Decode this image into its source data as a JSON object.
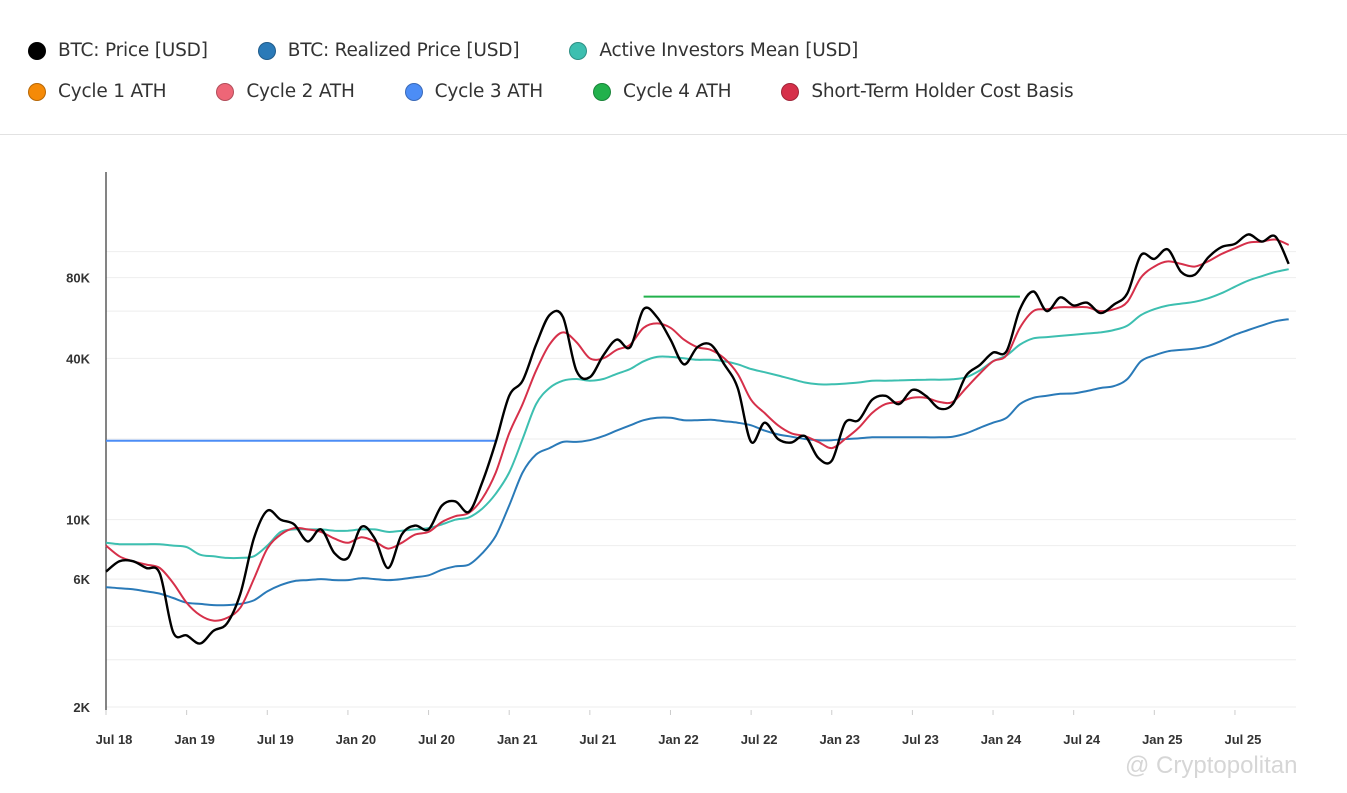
{
  "legend": [
    [
      {
        "label": "BTC: Price [USD]",
        "color": "#000000"
      },
      {
        "label": "BTC: Realized Price [USD]",
        "color": "#2a7ab8"
      },
      {
        "label": "Active Investors Mean [USD]",
        "color": "#3dbfb0"
      }
    ],
    [
      {
        "label": "Cycle 1 ATH",
        "color": "#f58a07"
      },
      {
        "label": "Cycle 2 ATH",
        "color": "#ee6677"
      },
      {
        "label": "Cycle 3 ATH",
        "color": "#4c8df6"
      },
      {
        "label": "Cycle 4 ATH",
        "color": "#22b14c"
      },
      {
        "label": "Short-Term Holder Cost Basis",
        "color": "#d6304a"
      }
    ]
  ],
  "watermark": "@ Cryptopolitan",
  "chart_data": {
    "type": "line",
    "y_scale": "log",
    "ylim": [
      2000,
      198000
    ],
    "grid": "horizontal",
    "legend_placement": "top",
    "y_ticks": [
      {
        "value": 2000,
        "label": "2K"
      },
      {
        "value": 6000,
        "label": "6K"
      },
      {
        "value": 10000,
        "label": "10K"
      },
      {
        "value": 40000,
        "label": "40K"
      },
      {
        "value": 80000,
        "label": "80K"
      }
    ],
    "x_ticks": [
      {
        "date": "2018-07",
        "label": "Jul 18"
      },
      {
        "date": "2019-01",
        "label": "Jan 19"
      },
      {
        "date": "2019-07",
        "label": "Jul 19"
      },
      {
        "date": "2020-01",
        "label": "Jan 20"
      },
      {
        "date": "2020-07",
        "label": "Jul 20"
      },
      {
        "date": "2021-01",
        "label": "Jan 21"
      },
      {
        "date": "2021-07",
        "label": "Jul 21"
      },
      {
        "date": "2022-01",
        "label": "Jan 22"
      },
      {
        "date": "2022-07",
        "label": "Jul 22"
      },
      {
        "date": "2023-01",
        "label": "Jan 23"
      },
      {
        "date": "2023-07",
        "label": "Jul 23"
      },
      {
        "date": "2024-01",
        "label": "Jan 24"
      },
      {
        "date": "2024-07",
        "label": "Jul 24"
      },
      {
        "date": "2025-01",
        "label": "Jan 25"
      },
      {
        "date": "2025-07",
        "label": "Jul 25"
      }
    ],
    "x_start": "2018-07",
    "x_frequency": "monthly",
    "series": [
      {
        "name": "Active Investors Mean [USD]",
        "color": "#3dbfb0",
        "values": [
          8200,
          8100,
          8100,
          8100,
          8100,
          8000,
          7900,
          7400,
          7300,
          7200,
          7200,
          7300,
          8000,
          9000,
          9200,
          9200,
          9200,
          9100,
          9100,
          9200,
          9200,
          9000,
          9100,
          9200,
          9300,
          9600,
          10000,
          10200,
          11000,
          12500,
          15000,
          20000,
          27000,
          31000,
          33000,
          33500,
          33000,
          33500,
          35000,
          36500,
          39000,
          40500,
          40500,
          40000,
          39500,
          39500,
          39000,
          38000,
          36500,
          35500,
          34500,
          33500,
          32500,
          32000,
          32000,
          32200,
          32500,
          33000,
          33000,
          33100,
          33200,
          33300,
          33300,
          33400,
          34000,
          36000,
          39000,
          41000,
          45000,
          47500,
          48000,
          48500,
          49000,
          49500,
          50000,
          51000,
          53000,
          58000,
          61000,
          63000,
          64000,
          65000,
          67000,
          70000,
          74000,
          78000,
          81000,
          84000,
          86000
        ]
      },
      {
        "name": "BTC: Realized Price [USD]",
        "color": "#2a7ab8",
        "values": [
          5600,
          5550,
          5500,
          5400,
          5300,
          5100,
          4900,
          4850,
          4800,
          4800,
          4850,
          5000,
          5400,
          5700,
          5900,
          5950,
          6000,
          5950,
          5950,
          6050,
          6000,
          5950,
          6000,
          6100,
          6200,
          6500,
          6700,
          6800,
          7500,
          8700,
          11300,
          15000,
          17500,
          18500,
          19500,
          19500,
          19800,
          20500,
          21500,
          22500,
          23500,
          24000,
          24000,
          23500,
          23500,
          23600,
          23300,
          23000,
          22500,
          21500,
          20800,
          20400,
          20000,
          19800,
          19800,
          20000,
          20100,
          20300,
          20300,
          20300,
          20300,
          20300,
          20300,
          20400,
          21000,
          22000,
          23000,
          24000,
          27000,
          28500,
          29000,
          29500,
          29600,
          30200,
          31000,
          31500,
          33500,
          39000,
          41000,
          42500,
          43000,
          43500,
          44500,
          46500,
          49000,
          51000,
          53000,
          55000,
          56000
        ]
      },
      {
        "name": "Short-Term Holder Cost Basis",
        "color": "#d6304a",
        "values": [
          8000,
          7300,
          7000,
          6800,
          6600,
          5800,
          4900,
          4400,
          4200,
          4300,
          4700,
          6000,
          7800,
          8800,
          9300,
          9200,
          9000,
          8500,
          8200,
          8600,
          8300,
          7800,
          8200,
          8800,
          9000,
          9800,
          10300,
          10600,
          12000,
          15000,
          21000,
          27000,
          36000,
          45000,
          50000,
          46000,
          40000,
          40000,
          43000,
          45000,
          52000,
          54000,
          52000,
          47000,
          44000,
          43000,
          40000,
          35000,
          28000,
          25000,
          22500,
          21000,
          20500,
          19500,
          18500,
          20000,
          22000,
          25000,
          27000,
          27500,
          28500,
          28500,
          27500,
          27500,
          31000,
          35000,
          39000,
          41000,
          52000,
          60000,
          61000,
          62000,
          62000,
          62000,
          60000,
          61000,
          65000,
          80000,
          88000,
          92000,
          90000,
          88000,
          92000,
          98000,
          103000,
          108000,
          109000,
          111000,
          106000
        ]
      },
      {
        "name": "BTC: Price [USD]",
        "color": "#000000",
        "values": [
          6400,
          7000,
          7000,
          6600,
          6300,
          3800,
          3700,
          3450,
          3850,
          4100,
          5300,
          8500,
          10800,
          10000,
          9600,
          8300,
          9200,
          7500,
          7200,
          9400,
          8500,
          6600,
          8800,
          9500,
          9200,
          11300,
          11700,
          10700,
          13800,
          19500,
          29000,
          33000,
          45000,
          58000,
          57000,
          36000,
          34000,
          41000,
          47000,
          44000,
          61000,
          57000,
          47000,
          38000,
          44000,
          45000,
          38000,
          31000,
          19500,
          23000,
          20000,
          19400,
          20500,
          17000,
          16600,
          23000,
          23500,
          28000,
          29000,
          27000,
          30500,
          29000,
          26000,
          27000,
          34500,
          37700,
          42000,
          42500,
          61000,
          71000,
          60000,
          67500,
          63000,
          64500,
          59000,
          63500,
          70000,
          97000,
          94000,
          102000,
          84000,
          82000,
          95000,
          104000,
          107000,
          116000,
          109000,
          114000,
          90000
        ]
      }
    ],
    "ath_lines": [
      {
        "name": "Cycle 3 ATH",
        "color": "#4c8df6",
        "value": 19700,
        "from": "2018-07",
        "to": "2020-12"
      },
      {
        "name": "Cycle 4 ATH",
        "color": "#22b14c",
        "value": 68000,
        "from": "2021-11",
        "to": "2024-03"
      }
    ]
  }
}
